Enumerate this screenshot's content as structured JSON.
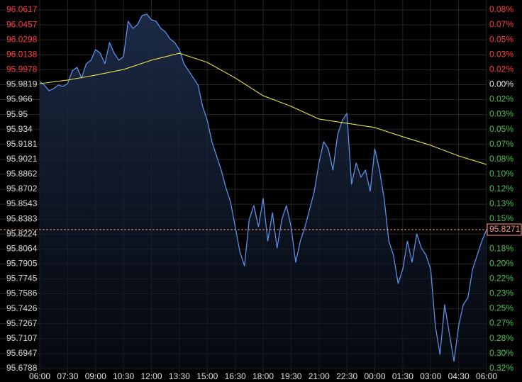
{
  "chart_data": {
    "type": "line",
    "xlim": [
      0,
      24
    ],
    "xticks": [
      {
        "value": 0,
        "label": "06:00"
      },
      {
        "value": 1.5,
        "label": "07:30"
      },
      {
        "value": 3,
        "label": "09:00"
      },
      {
        "value": 4.5,
        "label": "10:30"
      },
      {
        "value": 6,
        "label": "12:00"
      },
      {
        "value": 7.5,
        "label": "13:30"
      },
      {
        "value": 9,
        "label": "15:00"
      },
      {
        "value": 10.5,
        "label": "16:30"
      },
      {
        "value": 12,
        "label": "18:00"
      },
      {
        "value": 13.5,
        "label": "19:30"
      },
      {
        "value": 15,
        "label": "21:00"
      },
      {
        "value": 16.5,
        "label": "22:30"
      },
      {
        "value": 18,
        "label": "00:00"
      },
      {
        "value": 19.5,
        "label": "01:30"
      },
      {
        "value": 21,
        "label": "03:00"
      },
      {
        "value": 22.5,
        "label": "04:30"
      },
      {
        "value": 24,
        "label": "06:00"
      }
    ],
    "ylim": [
      95.6788,
      96.0617
    ],
    "yticks": [
      96.0617,
      96.0457,
      96.0298,
      96.0138,
      95.9978,
      95.9819,
      95.966,
      95.95,
      95.934,
      95.9181,
      95.9021,
      95.8862,
      95.8702,
      95.8543,
      95.8383,
      95.8224,
      95.8064,
      95.7905,
      95.7745,
      95.7586,
      95.7426,
      95.7267,
      95.7107,
      95.6947,
      95.6788
    ],
    "y2lim": [
      -0.3158,
      0.0831
    ],
    "y2ticks": [
      {
        "value": 0.0831,
        "label": "0.08%"
      },
      {
        "value": 0.0665,
        "label": "0.07%"
      },
      {
        "value": 0.0499,
        "label": "0.05%"
      },
      {
        "value": 0.0333,
        "label": "0.03%"
      },
      {
        "value": 0.0166,
        "label": "0.02%"
      },
      {
        "value": 0,
        "label": "0.00%"
      },
      {
        "value": -0.0166,
        "label": "0.02%"
      },
      {
        "value": -0.0332,
        "label": "0.03%"
      },
      {
        "value": -0.0499,
        "label": "0.05%"
      },
      {
        "value": -0.0665,
        "label": "0.07%"
      },
      {
        "value": -0.0831,
        "label": "0.08%"
      },
      {
        "value": -0.0997,
        "label": "0.10%"
      },
      {
        "value": -0.1163,
        "label": "0.12%"
      },
      {
        "value": -0.1329,
        "label": "0.13%"
      },
      {
        "value": -0.1495,
        "label": "0.15%"
      },
      {
        "value": -0.1828,
        "label": "0.18%"
      },
      {
        "value": -0.1993,
        "label": "0.20%"
      },
      {
        "value": -0.216,
        "label": "0.22%"
      },
      {
        "value": -0.2325,
        "label": "0.23%"
      },
      {
        "value": -0.2492,
        "label": "0.25%"
      },
      {
        "value": -0.2658,
        "label": "0.27%"
      },
      {
        "value": -0.2824,
        "label": "0.28%"
      },
      {
        "value": -0.299,
        "label": "0.30%"
      },
      {
        "value": -0.3158,
        "label": "0.32%"
      }
    ],
    "grid": true,
    "up_color": "#ff3b3b",
    "down_color": "#4cc24c",
    "last_value": 95.8271,
    "last_color": "#ff9a7a",
    "series": [
      {
        "color": "#5b8fe8",
        "x": [
          0,
          0.25,
          0.5,
          0.75,
          1,
          1.25,
          1.5,
          1.75,
          2,
          2.25,
          2.5,
          2.75,
          3,
          3.25,
          3.5,
          3.75,
          4,
          4.25,
          4.5,
          4.75,
          5,
          5.25,
          5.5,
          5.75,
          6,
          6.25,
          6.5,
          6.75,
          7,
          7.25,
          7.5,
          7.75,
          8,
          8.25,
          8.5,
          8.75,
          9,
          9.25,
          9.5,
          9.75,
          10,
          10.25,
          10.5,
          10.75,
          11,
          11.25,
          11.5,
          11.75,
          12,
          12.25,
          12.5,
          12.75,
          13,
          13.25,
          13.5,
          13.75,
          14,
          14.25,
          14.5,
          14.75,
          15,
          15.25,
          15.5,
          15.75,
          16,
          16.25,
          16.5,
          16.75,
          17,
          17.25,
          17.5,
          17.75,
          18,
          18.25,
          18.5,
          18.75,
          19,
          19.25,
          19.5,
          19.75,
          20,
          20.25,
          20.5,
          20.75,
          21,
          21.25,
          21.5,
          21.75,
          22,
          22.25,
          22.5,
          22.75,
          23,
          23.25,
          23.5,
          23.75,
          24
        ],
        "values": [
          95.9853,
          95.9815,
          95.9754,
          95.9777,
          95.9815,
          95.98,
          95.983,
          95.9966,
          96.0004,
          95.9891,
          96.0042,
          96.008,
          96.0193,
          96.0155,
          96.0042,
          96.0269,
          96.0155,
          96.008,
          96.0118,
          96.0496,
          96.042,
          96.0458,
          96.0557,
          96.0572,
          96.0511,
          96.0496,
          96.042,
          96.0382,
          96.0307,
          96.0269,
          96.0193,
          96.0042,
          95.9966,
          95.9891,
          95.9815,
          95.9588,
          95.9437,
          95.921,
          95.9058,
          95.8907,
          95.8718,
          95.8566,
          95.8302,
          95.8037,
          95.7885,
          95.8377,
          95.8529,
          95.8302,
          95.8604,
          95.815,
          95.8453,
          95.8075,
          95.8377,
          95.8529,
          95.8302,
          95.7923,
          95.815,
          95.8302,
          95.8491,
          95.868,
          95.8983,
          95.921,
          95.9134,
          95.8907,
          95.9285,
          95.9437,
          95.9512,
          95.8756,
          95.8983,
          95.8831,
          95.8907,
          95.868,
          95.9134,
          95.8907,
          95.8604,
          95.815,
          95.7999,
          95.7696,
          95.7848,
          95.815,
          95.7923,
          95.8226,
          95.8075,
          95.7999,
          95.7848,
          95.7242,
          95.6939,
          95.7469,
          95.7166,
          95.6864,
          95.7242,
          95.7469,
          95.7545,
          95.7848,
          95.7999,
          95.815,
          95.8271
        ]
      },
      {
        "color": "#e8e04a",
        "x": [
          0,
          1.5,
          3,
          4.5,
          6,
          7.5,
          9,
          10.5,
          12,
          13.5,
          15,
          16.5,
          18,
          19.5,
          21,
          22.5,
          24
        ],
        "values": [
          95.983,
          95.9868,
          95.9921,
          95.9981,
          96.008,
          96.0155,
          96.0057,
          95.9891,
          95.9701,
          95.9588,
          95.9452,
          95.9407,
          95.9361,
          95.9263,
          95.9172,
          95.9058,
          95.8967
        ]
      }
    ]
  }
}
